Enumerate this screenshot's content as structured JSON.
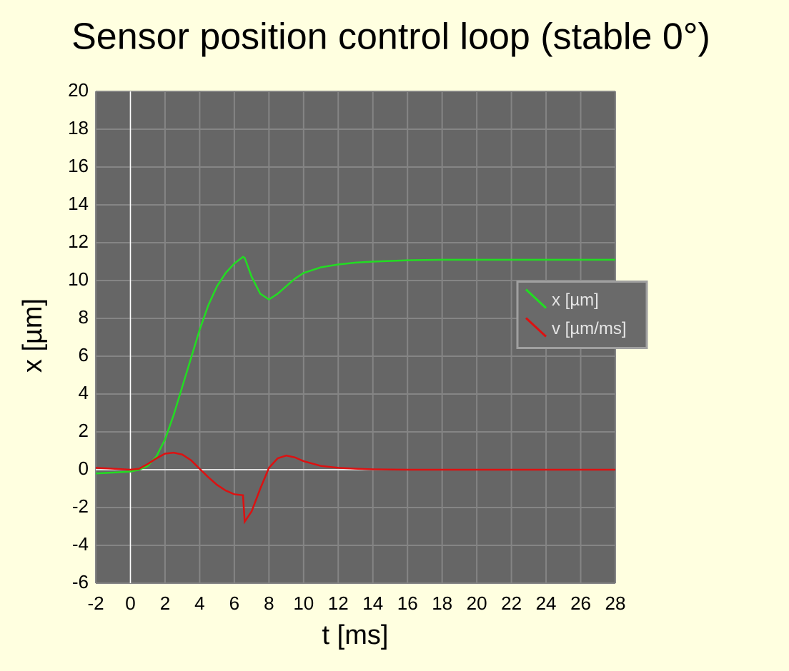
{
  "chart_data": {
    "type": "line",
    "title": "Sensor position control loop (stable 0°)",
    "x_label": "t [ms]",
    "y_label": "x [µm]",
    "x": [
      -2,
      -1,
      0,
      0.5,
      1,
      1.5,
      2,
      2.5,
      3,
      3.5,
      4,
      4.5,
      5,
      5.5,
      6,
      6.5,
      6.6,
      7,
      7.5,
      8,
      8.5,
      9,
      9.5,
      10,
      11,
      12,
      13,
      14,
      16,
      18,
      20,
      24,
      28
    ],
    "series": [
      {
        "name": "x [µm]",
        "color": "#22dd22",
        "values": [
          -0.2,
          -0.15,
          -0.1,
          0,
          0.2,
          0.7,
          1.6,
          2.9,
          4.4,
          5.9,
          7.4,
          8.7,
          9.7,
          10.4,
          10.9,
          11.25,
          11.2,
          10.2,
          9.3,
          9.0,
          9.3,
          9.7,
          10.1,
          10.4,
          10.7,
          10.85,
          10.95,
          11.0,
          11.07,
          11.1,
          11.1,
          11.1,
          11.1
        ]
      },
      {
        "name": "v [µm/ms]",
        "color": "#dd1111",
        "values": [
          0.1,
          0.05,
          0,
          0.05,
          0.3,
          0.6,
          0.85,
          0.9,
          0.8,
          0.5,
          0.05,
          -0.4,
          -0.8,
          -1.1,
          -1.3,
          -1.35,
          -2.75,
          -2.2,
          -1.0,
          0.1,
          0.6,
          0.75,
          0.65,
          0.45,
          0.2,
          0.1,
          0.05,
          0.02,
          0,
          0,
          0,
          0,
          0
        ]
      }
    ],
    "xlim": [
      -2,
      28
    ],
    "xticks": [
      -2,
      0,
      2,
      4,
      6,
      8,
      10,
      12,
      14,
      16,
      18,
      20,
      22,
      24,
      26,
      28
    ],
    "ylim": [
      -6,
      20
    ],
    "yticks": [
      -6,
      -4,
      -2,
      0,
      2,
      4,
      6,
      8,
      10,
      12,
      14,
      16,
      18,
      20
    ],
    "grid": true,
    "zero_lines": true,
    "legend": "right"
  }
}
